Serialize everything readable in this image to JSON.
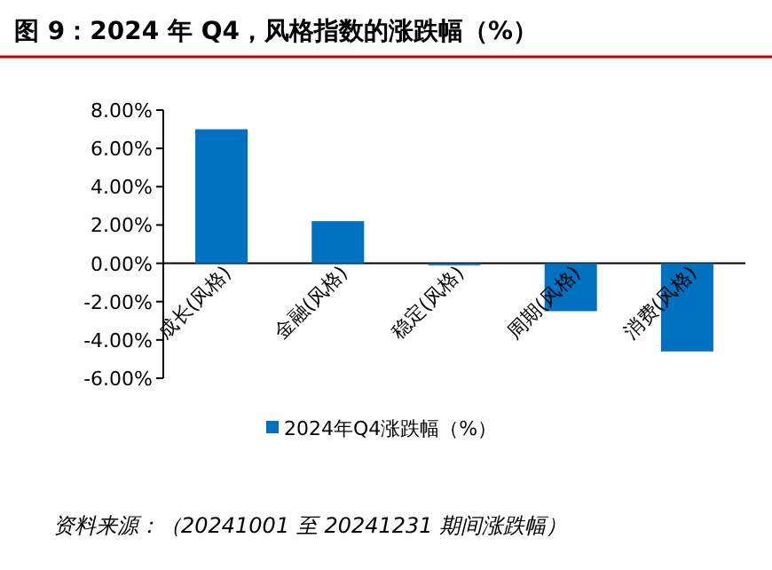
{
  "chart_data": {
    "type": "bar",
    "title": "图 9：2024 年 Q4，风格指数的涨跌幅（%）",
    "categories": [
      "成长(风格)",
      "金融(风格)",
      "稳定(风格)",
      "周期(风格)",
      "消费(风格)"
    ],
    "series": [
      {
        "name": "2024年Q4涨跌幅（%）",
        "color": "#0070c0",
        "values": [
          7.0,
          2.2,
          -0.1,
          -2.5,
          -4.6
        ]
      }
    ],
    "ylim": [
      -6,
      8
    ],
    "yticks": [
      {
        "value": -6,
        "label": "-6.00%"
      },
      {
        "value": -4,
        "label": "-4.00%"
      },
      {
        "value": -2,
        "label": "-2.00%"
      },
      {
        "value": 0,
        "label": "0.00%"
      },
      {
        "value": 2,
        "label": "2.00%"
      },
      {
        "value": 4,
        "label": "4.00%"
      },
      {
        "value": 6,
        "label": "6.00%"
      },
      {
        "value": 8,
        "label": "8.00%"
      }
    ],
    "legend": "bottom",
    "grid": false,
    "annotations": [
      "资料来源：（20241001 至 20241231 期间涨跌幅）"
    ]
  }
}
